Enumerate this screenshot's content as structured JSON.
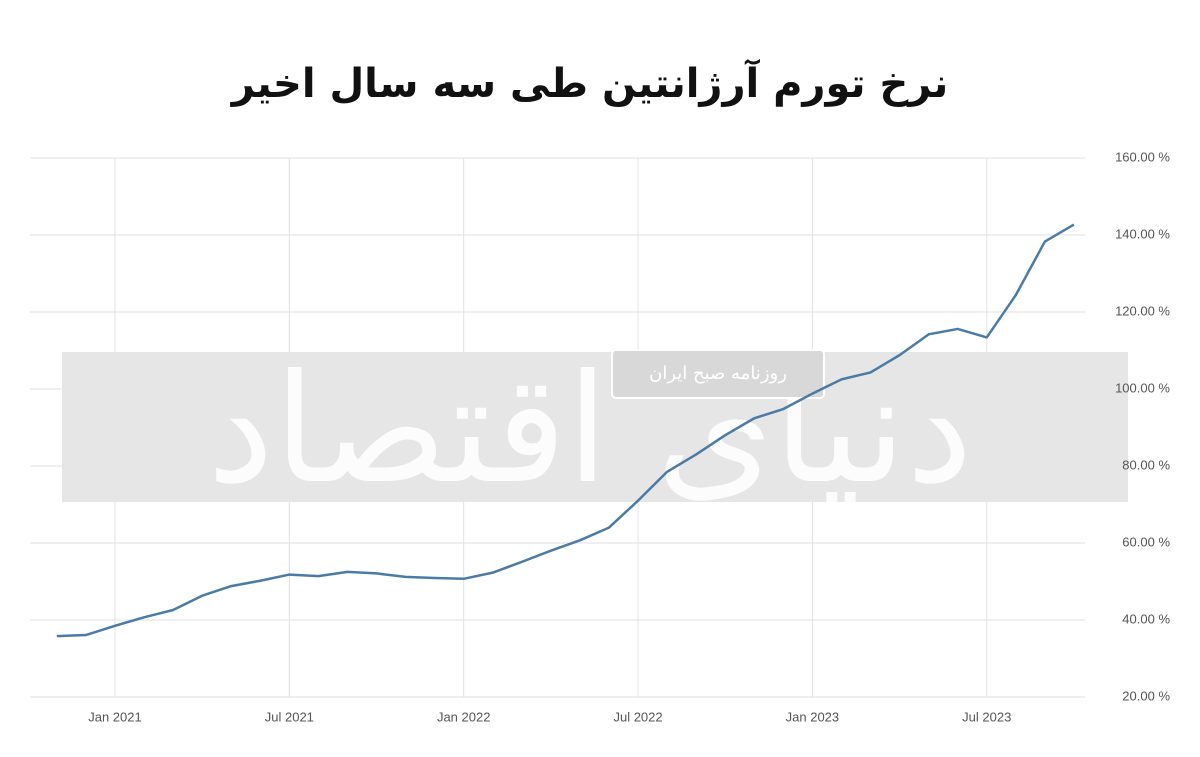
{
  "chart_data": {
    "type": "line",
    "title": "نرخ تورم آرژانتین طی سه سال اخیر",
    "watermark": "دنیای اقتصاد",
    "watermark_caption": "روزنامه صبح ایران",
    "x": [
      "2020-11",
      "2020-12",
      "2021-01",
      "2021-02",
      "2021-03",
      "2021-04",
      "2021-05",
      "2021-06",
      "2021-07",
      "2021-08",
      "2021-09",
      "2021-10",
      "2021-11",
      "2021-12",
      "2022-01",
      "2022-02",
      "2022-03",
      "2022-04",
      "2022-05",
      "2022-06",
      "2022-07",
      "2022-08",
      "2022-09",
      "2022-10",
      "2022-11",
      "2022-12",
      "2023-01",
      "2023-02",
      "2023-03",
      "2023-04",
      "2023-05",
      "2023-06",
      "2023-07",
      "2023-08",
      "2023-09",
      "2023-10"
    ],
    "series": [
      {
        "color": "#4a7ba7",
        "values": [
          35.8,
          36.1,
          38.5,
          40.7,
          42.6,
          46.3,
          48.8,
          50.2,
          51.8,
          51.4,
          52.5,
          52.1,
          51.2,
          50.9,
          50.7,
          52.3,
          55.1,
          58.0,
          60.7,
          64.0,
          71.0,
          78.5,
          83.0,
          88.0,
          92.4,
          94.8,
          98.8,
          102.5,
          104.3,
          108.8,
          114.2,
          115.6,
          113.4,
          124.4,
          138.3,
          142.7
        ]
      }
    ],
    "xlim": [
      "2020-10",
      "2023-11"
    ],
    "xticks": [
      {
        "value": "2021-01",
        "label": "Jan 2021"
      },
      {
        "value": "2021-07",
        "label": "Jul 2021"
      },
      {
        "value": "2022-01",
        "label": "Jan 2022"
      },
      {
        "value": "2022-07",
        "label": "Jul 2022"
      },
      {
        "value": "2023-01",
        "label": "Jan 2023"
      },
      {
        "value": "2023-07",
        "label": "Jul 2023"
      }
    ],
    "ylim": [
      20,
      160
    ],
    "yticks": [
      {
        "value": 20,
        "label": "20.00 %"
      },
      {
        "value": 40,
        "label": "40.00 %"
      },
      {
        "value": 60,
        "label": "60.00 %"
      },
      {
        "value": 80,
        "label": "80.00 %"
      },
      {
        "value": 100,
        "label": "100.00 %"
      },
      {
        "value": 120,
        "label": "120.00 %"
      },
      {
        "value": 140,
        "label": "140.00 %"
      },
      {
        "value": 160,
        "label": "160.00 %"
      }
    ],
    "grid": true
  }
}
